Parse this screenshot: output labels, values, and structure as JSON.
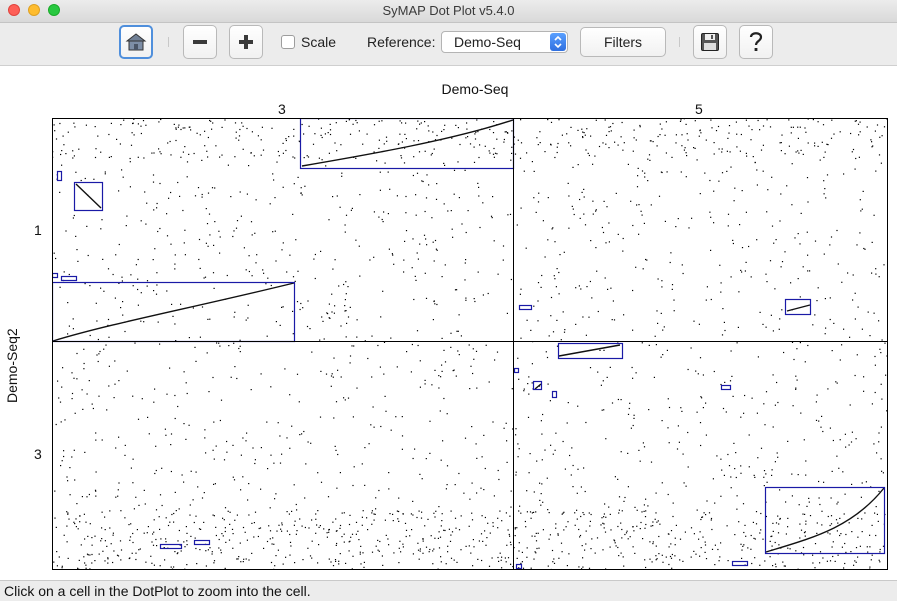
{
  "window": {
    "title": "SyMAP Dot Plot v5.4.0"
  },
  "toolbar": {
    "home_icon": "home-icon",
    "zoom_out_icon": "minus-icon",
    "zoom_in_icon": "plus-icon",
    "scale_label": "Scale",
    "scale_checked": false,
    "reference_label": "Reference:",
    "reference_value": "Demo-Seq",
    "filters_label": "Filters",
    "save_icon": "floppy-disk-icon",
    "help_icon": "question-mark-icon"
  },
  "plot": {
    "x_species": "Demo-Seq",
    "y_species": "Demo-Seq2",
    "x_chromosomes": [
      "3",
      "5"
    ],
    "y_chromosomes": [
      "1",
      "3"
    ],
    "colors": {
      "block": "#1a1aa6",
      "dots": "#000000",
      "grid": "#000000"
    }
  },
  "status": {
    "text": "Click on a cell in the DotPlot to zoom into the cell."
  }
}
